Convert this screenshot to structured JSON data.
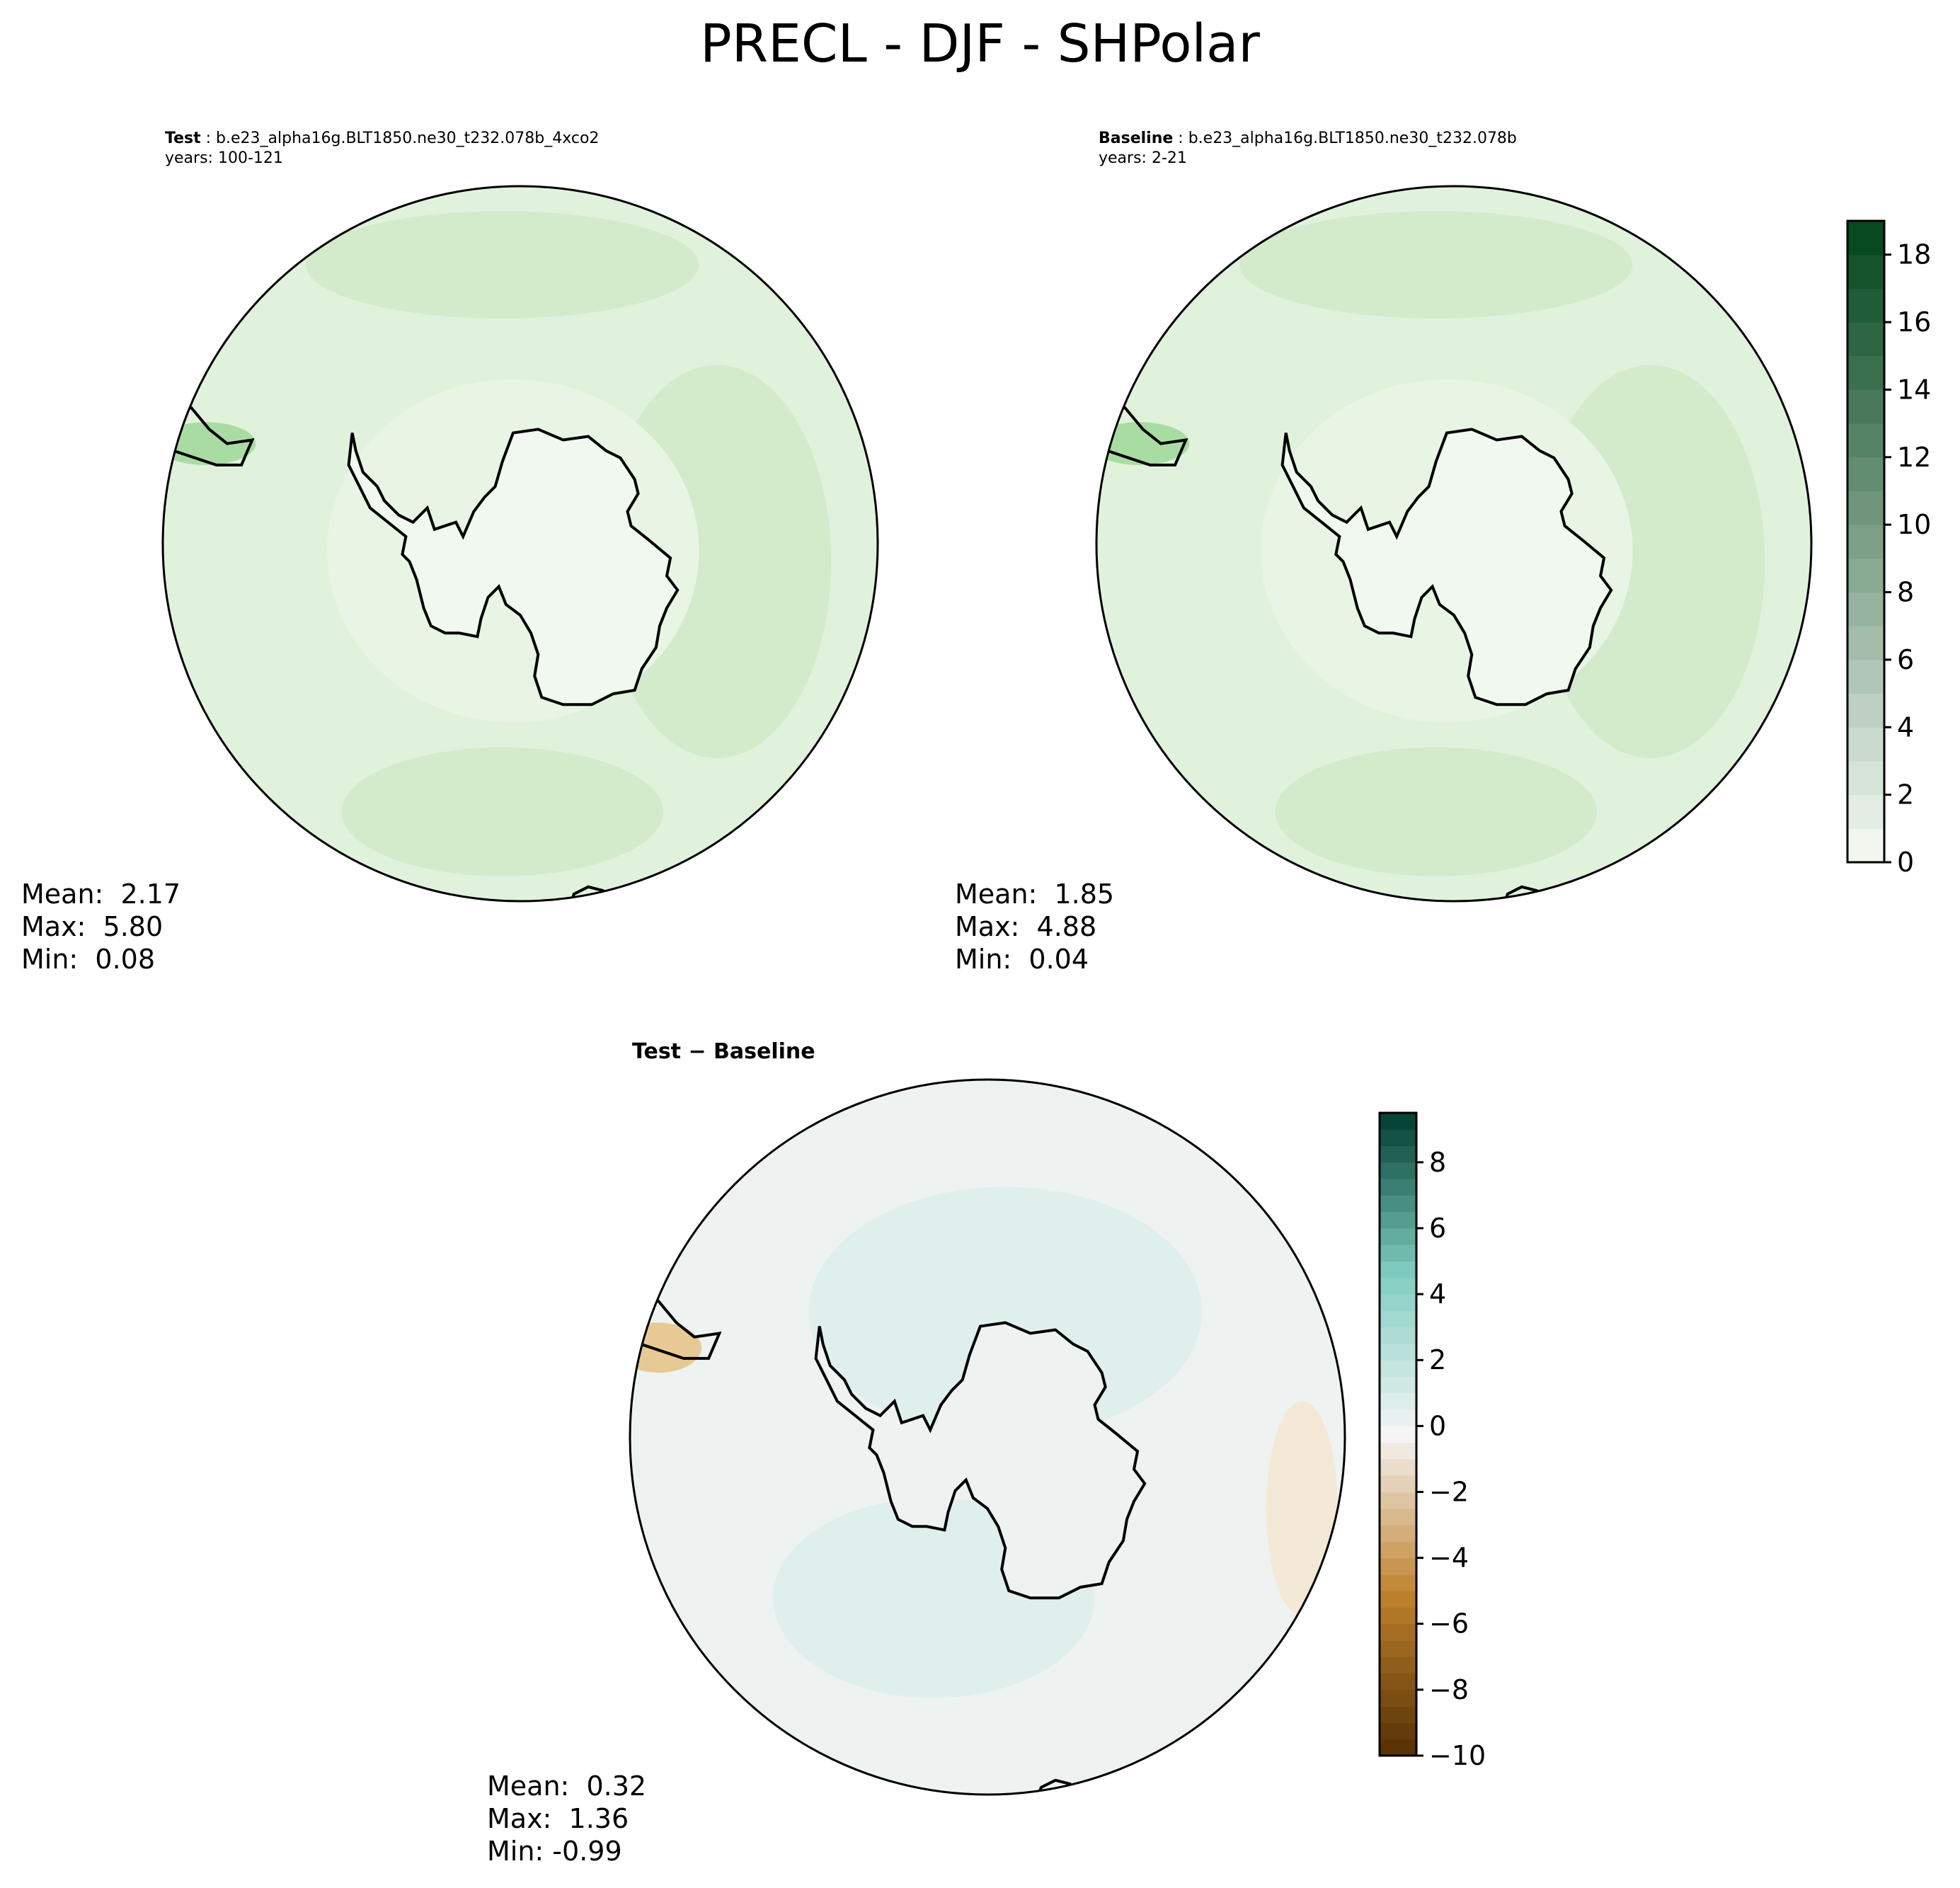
{
  "figure": {
    "title": "PRECL - DJF - SHPolar"
  },
  "panels": {
    "test": {
      "label": "Test",
      "case": " : b.e23_alpha16g.BLT1850.ne30_t232.078b_4xco2",
      "years": "years: 100-121",
      "mean": "Mean:  2.17",
      "max": "Max:  5.80",
      "min": "Min:  0.08"
    },
    "baseline": {
      "label": "Baseline",
      "case": " : b.e23_alpha16g.BLT1850.ne30_t232.078b",
      "years": "years: 2-21",
      "mean": "Mean:  1.85",
      "max": "Max:  4.88",
      "min": "Min:  0.04"
    },
    "diff": {
      "title": "Test − Baseline",
      "mean": "Mean:  0.32",
      "max": "Max:  1.36",
      "min": "Min: -0.99"
    }
  },
  "chart_data": [
    {
      "type": "heatmap",
      "projection": "south-polar-stereographic",
      "title": "Test",
      "variable": "PRECL",
      "season": "DJF",
      "region": "SHPolar",
      "colormap": "Greens",
      "clim": [
        0,
        19
      ],
      "colorbar_ticks": [
        0,
        2,
        4,
        6,
        8,
        10,
        12,
        14,
        16,
        18
      ],
      "levels": 19,
      "stats": {
        "mean": 2.17,
        "max": 5.8,
        "min": 0.08
      }
    },
    {
      "type": "heatmap",
      "projection": "south-polar-stereographic",
      "title": "Baseline",
      "variable": "PRECL",
      "season": "DJF",
      "region": "SHPolar",
      "colormap": "Greens",
      "clim": [
        0,
        19
      ],
      "colorbar_ticks": [
        0,
        2,
        4,
        6,
        8,
        10,
        12,
        14,
        16,
        18
      ],
      "levels": 19,
      "stats": {
        "mean": 1.85,
        "max": 4.88,
        "min": 0.04
      }
    },
    {
      "type": "heatmap",
      "projection": "south-polar-stereographic",
      "title": "Test − Baseline",
      "colormap": "BrBG",
      "clim": [
        -10,
        9.5
      ],
      "colorbar_ticks": [
        -10,
        -8,
        -6,
        -4,
        -2,
        0,
        2,
        4,
        6,
        8
      ],
      "levels": 39,
      "stats": {
        "mean": 0.32,
        "max": 1.36,
        "min": -0.99
      }
    }
  ],
  "colors": {
    "green_light": "#f0f8ef",
    "green_mid": "#e1f2dc",
    "green_band": "#d3ebcb",
    "green_dark": "#00441b",
    "diff_neutral": "#eef2f1",
    "diff_teal": "#dff0ec",
    "diff_brown": "#f3e9d6",
    "coast": "#000000"
  }
}
